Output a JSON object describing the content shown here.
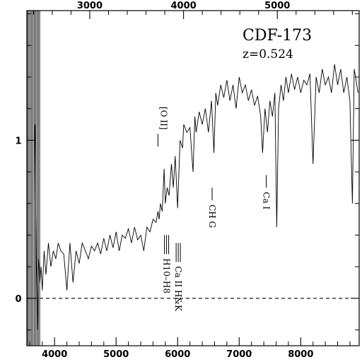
{
  "chart_data": {
    "type": "line",
    "object_name": "CDF-173",
    "redshift_label": "z=0.524",
    "xlim_observed": [
      3550,
      8950
    ],
    "xlim_rest": [
      2329.4,
      5872.7
    ],
    "ylim": [
      -0.3,
      1.82
    ],
    "x_ticks_bottom": [
      4000,
      5000,
      6000,
      7000,
      8000
    ],
    "x_ticks_top": [
      3000,
      4000,
      5000
    ],
    "y_ticks": [
      0,
      1
    ],
    "zero_line": true,
    "series": [
      {
        "x": [
          3680,
          3700,
          3720,
          3740,
          3760,
          3780,
          3800,
          3830,
          3860,
          3900,
          3940,
          3980,
          4020,
          4060,
          4100,
          4150,
          4200,
          4250,
          4300,
          4350,
          4400,
          4450,
          4500,
          4550,
          4600,
          4650,
          4700,
          4750,
          4800,
          4850,
          4900,
          4950,
          5000,
          5050,
          5100,
          5150,
          5200,
          5250,
          5300,
          5350,
          5400,
          5450,
          5500,
          5550,
          5600,
          5650,
          5680,
          5700,
          5720,
          5750,
          5780,
          5800,
          5830,
          5860,
          5900,
          5930,
          5960,
          6000,
          6040,
          6080,
          6100,
          6150,
          6200,
          6250,
          6280,
          6300,
          6350,
          6400,
          6450,
          6500,
          6550,
          6590,
          6620,
          6650,
          6700,
          6750,
          6800,
          6850,
          6900,
          6950,
          7000,
          7050,
          7100,
          7150,
          7200,
          7250,
          7300,
          7350,
          7380,
          7420,
          7460,
          7500,
          7540,
          7580,
          7610,
          7640,
          7680,
          7720,
          7760,
          7800,
          7850,
          7900,
          7950,
          8000,
          8050,
          8100,
          8150,
          8200,
          8250,
          8300,
          8350,
          8400,
          8450,
          8500,
          8550,
          8600,
          8650,
          8700,
          8750,
          8800,
          8840,
          8870,
          8900,
          8930
        ],
        "y": [
          1.1,
          0.3,
          -0.2,
          0.25,
          0.1,
          0.2,
          0.05,
          0.3,
          0.15,
          0.35,
          0.2,
          0.3,
          0.25,
          0.35,
          0.3,
          0.28,
          0.05,
          0.35,
          0.1,
          0.3,
          0.22,
          0.35,
          0.3,
          0.25,
          0.33,
          0.3,
          0.35,
          0.28,
          0.38,
          0.3,
          0.4,
          0.32,
          0.42,
          0.3,
          0.4,
          0.38,
          0.44,
          0.35,
          0.45,
          0.37,
          0.4,
          0.3,
          0.45,
          0.42,
          0.5,
          0.48,
          0.55,
          0.5,
          0.6,
          0.55,
          0.82,
          0.6,
          0.7,
          0.65,
          0.85,
          0.7,
          0.9,
          0.57,
          1.0,
          0.95,
          1.1,
          1.05,
          1.08,
          0.8,
          1.15,
          1.05,
          1.18,
          1.1,
          1.2,
          1.05,
          1.25,
          0.92,
          1.3,
          1.22,
          1.35,
          1.27,
          1.38,
          1.25,
          1.35,
          1.2,
          1.4,
          1.3,
          1.35,
          1.25,
          1.32,
          1.22,
          1.28,
          1.15,
          0.92,
          1.2,
          1.05,
          1.25,
          1.15,
          1.3,
          0.45,
          1.2,
          1.35,
          1.25,
          1.4,
          1.3,
          1.42,
          1.32,
          1.4,
          1.3,
          1.38,
          1.35,
          1.42,
          0.85,
          1.4,
          1.3,
          1.45,
          1.35,
          1.4,
          1.3,
          1.48,
          1.35,
          1.45,
          1.3,
          1.4,
          1.25,
          0.6,
          1.45,
          1.38,
          1.3
        ]
      }
    ],
    "line_annotations": [
      {
        "label": "[O II]",
        "x": 5680,
        "y_top": 1.04,
        "y_bottom": 0.96,
        "side": "above"
      },
      {
        "label": "H10–H8",
        "x": 5820,
        "y_top": 0.4,
        "y_bottom": 0.28,
        "side": "below"
      },
      {
        "label": "Ca II H&K",
        "x": 6010,
        "y_top": 0.35,
        "y_bottom": 0.23,
        "side": "below"
      },
      {
        "label": "CH G",
        "x": 6560,
        "y_top": 0.7,
        "y_bottom": 0.62,
        "side": "below"
      },
      {
        "label": "Ca I",
        "x": 7440,
        "y_top": 0.78,
        "y_bottom": 0.7,
        "side": "below"
      }
    ]
  }
}
